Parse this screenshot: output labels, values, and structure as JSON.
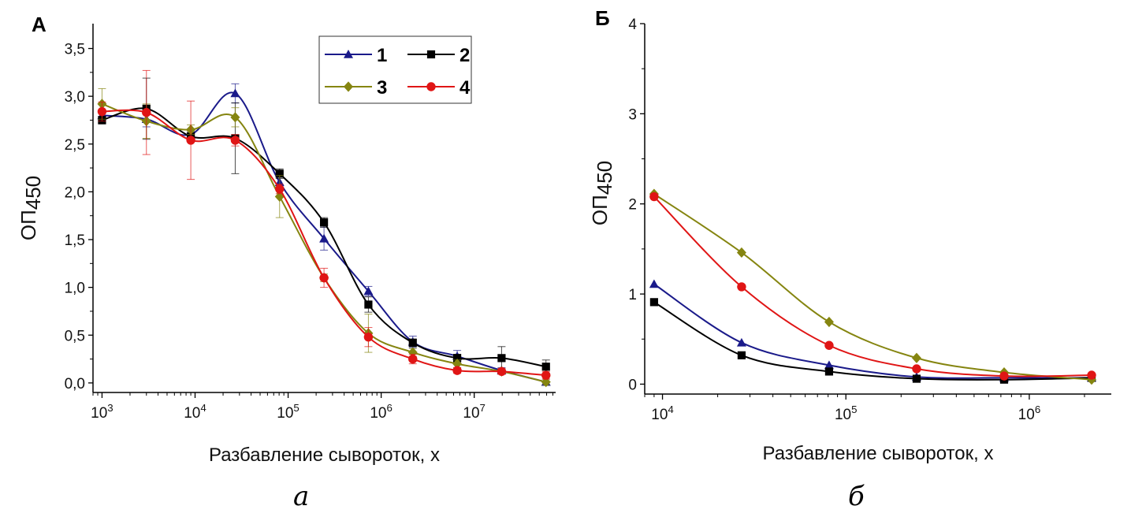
{
  "chart_data": [
    {
      "type": "line",
      "panel_label": "А",
      "caption": "а",
      "xlabel": "Разбавление сывороток, х",
      "ylabel_main": "ОП",
      "ylabel_sub": "450",
      "xscale": "log",
      "xlim": [
        800,
        75000000
      ],
      "ylim": [
        -0.1,
        3.76
      ],
      "xticks": [
        1000,
        10000,
        100000,
        1000000,
        10000000
      ],
      "xtick_labels": [
        {
          "base": "10",
          "exp": "3"
        },
        {
          "base": "10",
          "exp": "4"
        },
        {
          "base": "10",
          "exp": "5"
        },
        {
          "base": "10",
          "exp": "6"
        },
        {
          "base": "10",
          "exp": "7"
        }
      ],
      "yticks": [
        0,
        0.5,
        1.0,
        1.5,
        2.0,
        2.5,
        3.0,
        3.5
      ],
      "ytick_labels": [
        "0,0",
        "0,5",
        "1,0",
        "1,5",
        "2,0",
        "2,5",
        "3,0",
        "3,5"
      ],
      "grid": false,
      "legend_position": "top-right",
      "x": [
        1000,
        3000,
        9000,
        27000,
        81000,
        243000,
        729000,
        2187000,
        6561000,
        19683000,
        59049000
      ],
      "series": [
        {
          "name": "1",
          "color": "#1a1a8a",
          "marker": "triangle",
          "values": [
            2.8,
            2.76,
            2.6,
            3.03,
            2.1,
            1.51,
            0.96,
            0.43,
            0.28,
            0.13,
            0.01
          ],
          "errors": [
            0.05,
            0.08,
            0.06,
            0.1,
            0.06,
            0.12,
            0.05,
            0.06,
            0.06,
            0.03,
            0.03
          ]
        },
        {
          "name": "2",
          "color": "#000000",
          "marker": "square",
          "values": [
            2.75,
            2.87,
            2.58,
            2.56,
            2.19,
            1.68,
            0.82,
            0.42,
            0.26,
            0.26,
            0.17
          ],
          "errors": [
            0.04,
            0.32,
            0.05,
            0.37,
            0.05,
            0.05,
            0.08,
            0.04,
            0.04,
            0.12,
            0.07
          ]
        },
        {
          "name": "3",
          "color": "#858510",
          "marker": "diamond",
          "values": [
            2.92,
            2.74,
            2.65,
            2.78,
            1.95,
            1.1,
            0.52,
            0.32,
            0.2,
            0.12,
            0.01
          ],
          "errors": [
            0.16,
            0.18,
            0.05,
            0.1,
            0.22,
            0.04,
            0.2,
            0.04,
            0.04,
            0.03,
            0.03
          ]
        },
        {
          "name": "4",
          "color": "#e01515",
          "marker": "circle",
          "values": [
            2.84,
            2.83,
            2.54,
            2.54,
            2.03,
            1.1,
            0.48,
            0.25,
            0.13,
            0.12,
            0.08
          ],
          "errors": [
            0.1,
            0.44,
            0.41,
            0.06,
            0.05,
            0.1,
            0.1,
            0.05,
            0.03,
            0.03,
            0.04
          ]
        }
      ]
    },
    {
      "type": "line",
      "panel_label": "Б",
      "caption": "б",
      "xlabel": "Разбавление сывороток, х",
      "ylabel_main": "ОП",
      "ylabel_sub": "450",
      "xscale": "log",
      "xlim": [
        8000,
        2800000
      ],
      "ylim": [
        -0.11,
        4.0
      ],
      "xticks": [
        10000,
        100000,
        1000000
      ],
      "xtick_labels": [
        {
          "base": "10",
          "exp": "4"
        },
        {
          "base": "10",
          "exp": "5"
        },
        {
          "base": "10",
          "exp": "6"
        }
      ],
      "yticks": [
        0,
        1,
        2,
        3,
        4
      ],
      "ytick_labels": [
        "0",
        "1",
        "2",
        "3",
        "4"
      ],
      "grid": false,
      "x": [
        9000,
        27000,
        81000,
        243000,
        729000,
        2187000
      ],
      "series": [
        {
          "color": "#1a1a8a",
          "marker": "triangle",
          "values": [
            1.11,
            0.46,
            0.21,
            0.08,
            0.07,
            0.07
          ]
        },
        {
          "color": "#000000",
          "marker": "square",
          "values": [
            0.91,
            0.32,
            0.14,
            0.06,
            0.05,
            0.07
          ]
        },
        {
          "color": "#858510",
          "marker": "diamond",
          "values": [
            2.11,
            1.46,
            0.69,
            0.29,
            0.13,
            0.05
          ]
        },
        {
          "color": "#e01515",
          "marker": "circle",
          "values": [
            2.08,
            1.08,
            0.43,
            0.17,
            0.09,
            0.1
          ]
        }
      ]
    }
  ]
}
